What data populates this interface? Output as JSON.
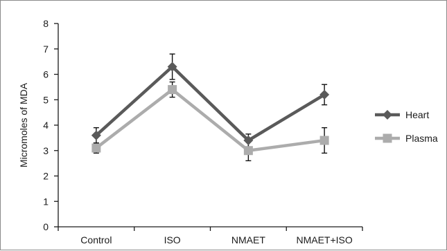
{
  "chart_data": {
    "type": "line",
    "categories": [
      "Control",
      "ISO",
      "NMAET",
      "NMAET+ISO"
    ],
    "ylabel": "Micromoles of MDA",
    "ylim": [
      0,
      8
    ],
    "yticks": [
      0,
      1,
      2,
      3,
      4,
      5,
      6,
      7,
      8
    ],
    "grid": false,
    "legend_position": "right",
    "series": [
      {
        "name": "Heart",
        "values": [
          3.6,
          6.3,
          3.4,
          5.2
        ],
        "error": [
          0.3,
          0.5,
          0.25,
          0.4
        ],
        "color": "#5a5a5a",
        "marker": "diamond"
      },
      {
        "name": "Plasma",
        "values": [
          3.1,
          5.4,
          3.0,
          3.4
        ],
        "error": [
          0.2,
          0.3,
          0.4,
          0.5
        ],
        "color": "#acacac",
        "marker": "square"
      }
    ]
  }
}
